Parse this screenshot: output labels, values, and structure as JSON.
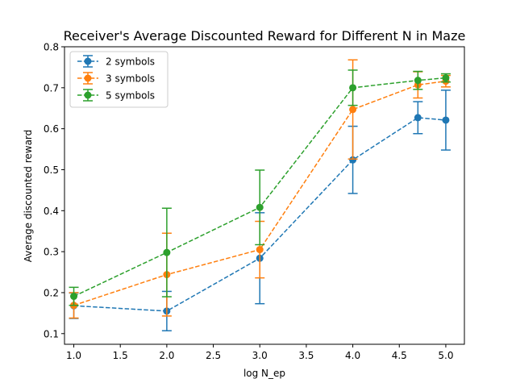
{
  "chart_data": {
    "type": "line",
    "title": "Receiver's Average Discounted Reward for Different N in Maze",
    "xlabel": "log N_ep",
    "ylabel": "Average discounted reward",
    "xlim": [
      0.9,
      5.2
    ],
    "ylim": [
      0.074,
      0.8
    ],
    "xticks": [
      1.0,
      1.5,
      2.0,
      2.5,
      3.0,
      3.5,
      4.0,
      4.5,
      5.0
    ],
    "xtick_labels": [
      "1.0",
      "1.5",
      "2.0",
      "2.5",
      "3.0",
      "3.5",
      "4.0",
      "4.5",
      "5.0"
    ],
    "yticks": [
      0.1,
      0.2,
      0.3,
      0.4,
      0.5,
      0.6,
      0.7,
      0.8
    ],
    "ytick_labels": [
      "0.1",
      "0.2",
      "0.3",
      "0.4",
      "0.5",
      "0.6",
      "0.7",
      "0.8"
    ],
    "grid": false,
    "legend_position": "top-left",
    "x": [
      1.0,
      2.0,
      3.0,
      4.0,
      4.7,
      5.0
    ],
    "series": [
      {
        "name": "2 symbols",
        "color": "#1f77b4",
        "values": [
          0.168,
          0.155,
          0.284,
          0.524,
          0.627,
          0.621
        ],
        "errors": [
          0.031,
          0.048,
          0.111,
          0.082,
          0.039,
          0.073
        ]
      },
      {
        "name": "3 symbols",
        "color": "#ff7f0e",
        "values": [
          0.169,
          0.244,
          0.305,
          0.647,
          0.707,
          0.716
        ],
        "errors": [
          0.031,
          0.101,
          0.069,
          0.121,
          0.032,
          0.014
        ]
      },
      {
        "name": "5 symbols",
        "color": "#2ca02c",
        "values": [
          0.191,
          0.298,
          0.408,
          0.7,
          0.718,
          0.724
        ],
        "errors": [
          0.022,
          0.108,
          0.091,
          0.043,
          0.022,
          0.01
        ]
      }
    ]
  }
}
